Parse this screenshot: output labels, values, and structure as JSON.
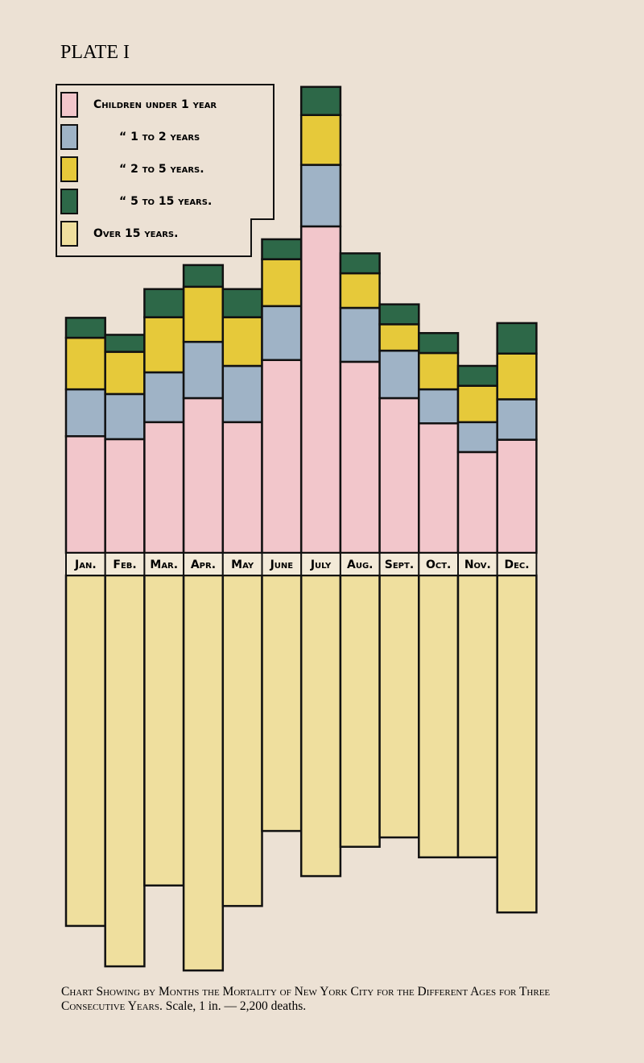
{
  "plate": "PLATE I",
  "chart_data": {
    "type": "bar",
    "stacked": true,
    "categories": [
      "Jan.",
      "Feb.",
      "Mar.",
      "Apr.",
      "May",
      "June",
      "July",
      "Aug.",
      "Sept.",
      "Oct.",
      "Nov.",
      "Dec."
    ],
    "series": [
      {
        "name": "Children under 1 year",
        "color": "#f2c6cb",
        "direction": "up",
        "values": [
          1990,
          1940,
          2230,
          2640,
          2230,
          3290,
          5570,
          3260,
          2640,
          2210,
          1720,
          1930
        ]
      },
      {
        "name": "“ 1 to 2 years",
        "color": "#9fb3c6",
        "direction": "up",
        "values": [
          800,
          770,
          850,
          960,
          960,
          920,
          1050,
          920,
          810,
          580,
          510,
          690
        ]
      },
      {
        "name": "“ 2 to 5 years.",
        "color": "#e6c93a",
        "direction": "up",
        "values": [
          880,
          720,
          940,
          940,
          830,
          800,
          850,
          590,
          450,
          620,
          620,
          780
        ]
      },
      {
        "name": "“ 5 to 15 years.",
        "color": "#2d6848",
        "direction": "up",
        "values": [
          340,
          290,
          480,
          370,
          480,
          340,
          480,
          340,
          340,
          340,
          340,
          520
        ]
      },
      {
        "name": "Over 15 years.",
        "color": "#efdf9e",
        "direction": "down",
        "values": [
          5980,
          6670,
          5290,
          6740,
          5640,
          4360,
          5130,
          4630,
          4470,
          4810,
          4810,
          5750
        ]
      }
    ],
    "caption": "Chart Showing by Months the Mortality of New York City for the Different Ages for Three Consecutive Years.",
    "scale_note": "Scale, 1 in. — 2,200 deaths."
  }
}
